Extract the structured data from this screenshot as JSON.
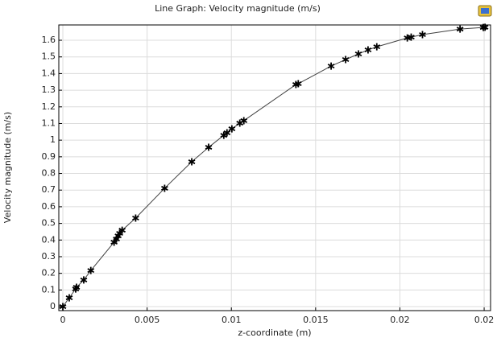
{
  "chart_data": {
    "type": "line",
    "title": "Line Graph: Velocity magnitude (m/s)",
    "x_label": "z-coordinate (m)",
    "y_label": "Velocity magnitude (m/s)",
    "x": [
      0,
      0.00038,
      0.00076,
      0.00081,
      0.00124,
      0.00166,
      0.00304,
      0.00318,
      0.00328,
      0.00337,
      0.00352,
      0.00432,
      0.00604,
      0.00765,
      0.00865,
      0.00955,
      0.00974,
      0.01003,
      0.0105,
      0.01074,
      0.01383,
      0.01397,
      0.01592,
      0.01678,
      0.01754,
      0.01811,
      0.01863,
      0.02044,
      0.02067,
      0.02134,
      0.02357,
      0.02495,
      0.02505
    ],
    "values": [
      0,
      0.053,
      0.106,
      0.116,
      0.16,
      0.217,
      0.387,
      0.406,
      0.425,
      0.44,
      0.459,
      0.532,
      0.711,
      0.87,
      0.957,
      1.029,
      1.044,
      1.068,
      1.102,
      1.117,
      1.334,
      1.339,
      1.445,
      1.484,
      1.518,
      1.542,
      1.561,
      1.614,
      1.619,
      1.634,
      1.667,
      1.677,
      1.678
    ],
    "color": "#000000",
    "line_color": "#404040",
    "xlim": [
      -0.00024,
      0.02538
    ],
    "xticks": [
      0,
      0.005,
      0.01,
      0.015,
      0.02,
      {
        "value": 0.025,
        "label": "0.02"
      }
    ],
    "ylim": [
      -0.024,
      1.692
    ],
    "yticks": [
      0,
      0.1,
      0.2,
      0.3,
      0.4,
      0.5,
      0.6,
      0.7,
      0.8,
      0.9,
      1,
      1.1,
      1.2,
      1.3,
      1.4,
      1.5,
      1.6
    ],
    "grid": true
  }
}
